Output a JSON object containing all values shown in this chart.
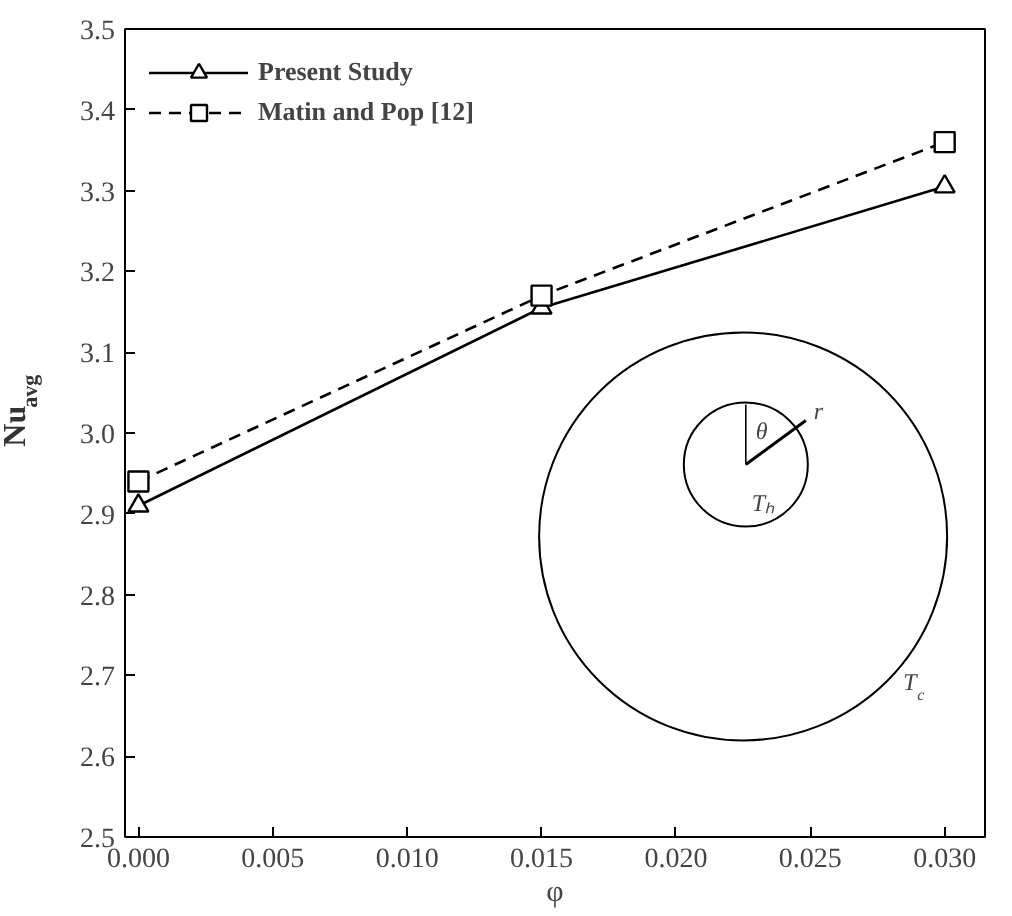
{
  "chart_data": {
    "type": "line",
    "xlabel": "φ",
    "ylabel": "Nu$_{avg}$",
    "x": [
      0.0,
      0.015,
      0.03
    ],
    "series": [
      {
        "name": "Present Study",
        "color": "#000000",
        "values": [
          2.91,
          3.155,
          3.305
        ],
        "marker": "triangle",
        "line_style": "solid"
      },
      {
        "name": "Matin and Pop [12]",
        "color": "#000000",
        "values": [
          2.94,
          3.17,
          3.36
        ],
        "marker": "square",
        "line_style": "dashed"
      }
    ],
    "xlim": [
      -0.0005,
      0.0315
    ],
    "xticks": [
      {
        "value": 0.0,
        "label": "0.000"
      },
      {
        "value": 0.005,
        "label": "0.005"
      },
      {
        "value": 0.01,
        "label": "0.010"
      },
      {
        "value": 0.015,
        "label": "0.015"
      },
      {
        "value": 0.02,
        "label": "0.020"
      },
      {
        "value": 0.025,
        "label": "0.025"
      },
      {
        "value": 0.03,
        "label": "0.030"
      }
    ],
    "ylim": [
      2.5,
      3.5
    ],
    "yticks": [
      2.5,
      2.6,
      2.7,
      2.8,
      2.9,
      {
        "value": 3.0,
        "label": "3.0"
      },
      3.1,
      3.2,
      3.3,
      3.4,
      3.5
    ],
    "legend": "top left",
    "grid": false,
    "annotations": [
      "θ",
      "r",
      "Tₕ",
      "T$_{c}$"
    ]
  }
}
